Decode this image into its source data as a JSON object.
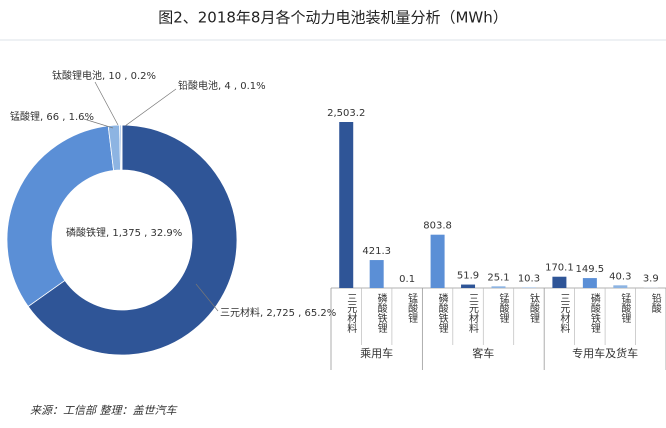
{
  "title": "图2、2018年8月各个动力电池装机量分析（MWh）",
  "source": "来源：工信部 整理：盖世汽车",
  "chart_data": [
    {
      "type": "pie",
      "values": [
        2725,
        1375,
        66,
        10,
        4
      ],
      "value_labels": [
        "三元材料, 2,725 , 65.2%",
        "磷酸铁锂, 1,375 , 32.9%",
        "锰酸锂, 66 , 1.6%",
        "钛酸锂电池, 10 , 0.2%",
        "铅酸电池, 4 , 0.1%"
      ],
      "colors": [
        "#2f5597",
        "#5b8fd6",
        "#8db4e2",
        "#a9c5ea",
        "#c9dbf1"
      ]
    },
    {
      "type": "bar",
      "groups": [
        {
          "name": "乘用车",
          "categories": [
            "三元材料",
            "磷酸铁锂",
            "锰酸锂"
          ],
          "values": [
            2503.2,
            421.3,
            0.1
          ],
          "value_labels": [
            "2,503.2",
            "421.3",
            "0.1"
          ],
          "colors": [
            "#2f5597",
            "#5b8fd6",
            "#8db4e2"
          ]
        },
        {
          "name": "客车",
          "categories": [
            "磷酸铁锂",
            "三元材料",
            "锰酸锂",
            "钛酸锂"
          ],
          "values": [
            803.8,
            51.9,
            25.1,
            10.3
          ],
          "value_labels": [
            "803.8",
            "51.9",
            "25.1",
            "10.3"
          ],
          "colors": [
            "#5b8fd6",
            "#2f5597",
            "#8db4e2",
            "#a9c5ea"
          ]
        },
        {
          "name": "专用车及货车",
          "categories": [
            "三元材料",
            "磷酸铁锂",
            "锰酸锂",
            "铅酸"
          ],
          "values": [
            170.1,
            149.5,
            40.3,
            3.9
          ],
          "value_labels": [
            "170.1",
            "149.5",
            "40.3",
            "3.9"
          ],
          "colors": [
            "#2f5597",
            "#5b8fd6",
            "#8db4e2",
            "#c9dbf1"
          ]
        }
      ]
    }
  ]
}
